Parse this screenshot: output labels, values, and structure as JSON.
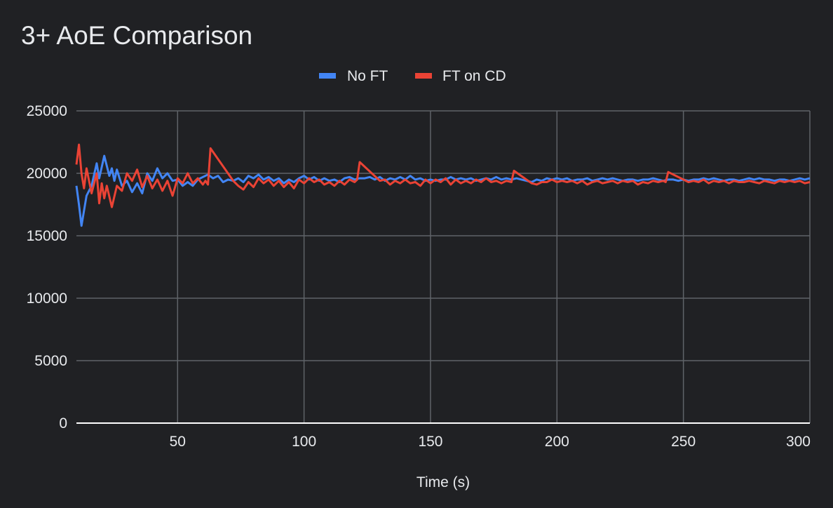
{
  "chart_data": {
    "type": "line",
    "title": "3+ AoE Comparison",
    "xlabel": "Time (s)",
    "ylabel": "",
    "xlim": [
      10,
      300
    ],
    "ylim": [
      0,
      25000
    ],
    "x_ticks": [
      50,
      100,
      150,
      200,
      250,
      300
    ],
    "y_ticks": [
      0,
      5000,
      10000,
      15000,
      20000,
      25000
    ],
    "grid": true,
    "legend_position": "top",
    "series": [
      {
        "name": "No FT",
        "color": "#4285f4",
        "points": [
          [
            10,
            19000
          ],
          [
            11,
            17500
          ],
          [
            12,
            15800
          ],
          [
            14,
            18200
          ],
          [
            16,
            19000
          ],
          [
            18,
            20800
          ],
          [
            19,
            19600
          ],
          [
            21,
            21400
          ],
          [
            23,
            19800
          ],
          [
            24,
            20400
          ],
          [
            25,
            19400
          ],
          [
            26,
            20300
          ],
          [
            28,
            19000
          ],
          [
            30,
            19400
          ],
          [
            32,
            18500
          ],
          [
            34,
            19200
          ],
          [
            36,
            18400
          ],
          [
            38,
            20000
          ],
          [
            40,
            19400
          ],
          [
            42,
            20400
          ],
          [
            44,
            19600
          ],
          [
            46,
            20000
          ],
          [
            48,
            19400
          ],
          [
            50,
            19500
          ],
          [
            52,
            19000
          ],
          [
            54,
            19300
          ],
          [
            56,
            19000
          ],
          [
            58,
            19500
          ],
          [
            60,
            19700
          ],
          [
            62,
            19900
          ],
          [
            64,
            19600
          ],
          [
            66,
            19800
          ],
          [
            68,
            19300
          ],
          [
            70,
            19500
          ],
          [
            72,
            19400
          ],
          [
            74,
            19600
          ],
          [
            76,
            19300
          ],
          [
            78,
            19800
          ],
          [
            80,
            19600
          ],
          [
            82,
            19900
          ],
          [
            84,
            19500
          ],
          [
            86,
            19700
          ],
          [
            88,
            19400
          ],
          [
            90,
            19600
          ],
          [
            92,
            19200
          ],
          [
            94,
            19500
          ],
          [
            96,
            19300
          ],
          [
            98,
            19600
          ],
          [
            100,
            19800
          ],
          [
            102,
            19500
          ],
          [
            104,
            19700
          ],
          [
            106,
            19400
          ],
          [
            108,
            19600
          ],
          [
            110,
            19400
          ],
          [
            112,
            19500
          ],
          [
            114,
            19300
          ],
          [
            116,
            19600
          ],
          [
            118,
            19700
          ],
          [
            120,
            19500
          ],
          [
            122,
            19600
          ],
          [
            124,
            19600
          ],
          [
            126,
            19700
          ],
          [
            128,
            19500
          ],
          [
            130,
            19700
          ],
          [
            132,
            19400
          ],
          [
            134,
            19600
          ],
          [
            136,
            19500
          ],
          [
            138,
            19700
          ],
          [
            140,
            19500
          ],
          [
            142,
            19800
          ],
          [
            144,
            19500
          ],
          [
            146,
            19600
          ],
          [
            148,
            19400
          ],
          [
            150,
            19500
          ],
          [
            152,
            19400
          ],
          [
            154,
            19500
          ],
          [
            156,
            19500
          ],
          [
            158,
            19700
          ],
          [
            160,
            19500
          ],
          [
            162,
            19600
          ],
          [
            164,
            19500
          ],
          [
            166,
            19600
          ],
          [
            168,
            19400
          ],
          [
            170,
            19500
          ],
          [
            172,
            19600
          ],
          [
            174,
            19500
          ],
          [
            176,
            19700
          ],
          [
            178,
            19500
          ],
          [
            180,
            19600
          ],
          [
            182,
            19500
          ],
          [
            184,
            19600
          ],
          [
            186,
            19500
          ],
          [
            188,
            19400
          ],
          [
            190,
            19300
          ],
          [
            192,
            19500
          ],
          [
            194,
            19400
          ],
          [
            196,
            19600
          ],
          [
            198,
            19500
          ],
          [
            200,
            19600
          ],
          [
            202,
            19500
          ],
          [
            204,
            19600
          ],
          [
            206,
            19400
          ],
          [
            208,
            19500
          ],
          [
            210,
            19500
          ],
          [
            212,
            19600
          ],
          [
            214,
            19400
          ],
          [
            216,
            19500
          ],
          [
            218,
            19600
          ],
          [
            220,
            19500
          ],
          [
            222,
            19600
          ],
          [
            224,
            19500
          ],
          [
            226,
            19400
          ],
          [
            228,
            19500
          ],
          [
            230,
            19500
          ],
          [
            232,
            19400
          ],
          [
            234,
            19500
          ],
          [
            236,
            19500
          ],
          [
            238,
            19600
          ],
          [
            240,
            19500
          ],
          [
            242,
            19400
          ],
          [
            244,
            19500
          ],
          [
            246,
            19500
          ],
          [
            248,
            19400
          ],
          [
            250,
            19500
          ],
          [
            252,
            19400
          ],
          [
            254,
            19500
          ],
          [
            256,
            19500
          ],
          [
            258,
            19600
          ],
          [
            260,
            19500
          ],
          [
            262,
            19600
          ],
          [
            264,
            19500
          ],
          [
            266,
            19400
          ],
          [
            268,
            19500
          ],
          [
            270,
            19500
          ],
          [
            272,
            19400
          ],
          [
            274,
            19500
          ],
          [
            276,
            19600
          ],
          [
            278,
            19500
          ],
          [
            280,
            19600
          ],
          [
            282,
            19500
          ],
          [
            284,
            19500
          ],
          [
            286,
            19400
          ],
          [
            288,
            19500
          ],
          [
            290,
            19500
          ],
          [
            292,
            19400
          ],
          [
            294,
            19500
          ],
          [
            296,
            19600
          ],
          [
            298,
            19500
          ],
          [
            300,
            19600
          ]
        ]
      },
      {
        "name": "FT on CD",
        "color": "#ea4335",
        "points": [
          [
            10,
            20700
          ],
          [
            11,
            22300
          ],
          [
            12,
            20000
          ],
          [
            13,
            18800
          ],
          [
            14,
            20400
          ],
          [
            16,
            18400
          ],
          [
            18,
            20000
          ],
          [
            19,
            17600
          ],
          [
            20,
            19200
          ],
          [
            21,
            18000
          ],
          [
            22,
            19000
          ],
          [
            24,
            17300
          ],
          [
            26,
            19000
          ],
          [
            28,
            18600
          ],
          [
            30,
            20000
          ],
          [
            32,
            19400
          ],
          [
            34,
            20300
          ],
          [
            36,
            18900
          ],
          [
            38,
            19800
          ],
          [
            40,
            18800
          ],
          [
            42,
            19500
          ],
          [
            44,
            18600
          ],
          [
            46,
            19400
          ],
          [
            48,
            18200
          ],
          [
            50,
            19600
          ],
          [
            52,
            19200
          ],
          [
            54,
            20000
          ],
          [
            56,
            19200
          ],
          [
            58,
            19600
          ],
          [
            60,
            19100
          ],
          [
            61,
            19400
          ],
          [
            62,
            19100
          ],
          [
            63,
            22000
          ],
          [
            72,
            19400
          ],
          [
            74,
            19000
          ],
          [
            76,
            18700
          ],
          [
            78,
            19300
          ],
          [
            80,
            18900
          ],
          [
            82,
            19600
          ],
          [
            84,
            19200
          ],
          [
            86,
            19500
          ],
          [
            88,
            19000
          ],
          [
            90,
            19400
          ],
          [
            92,
            18900
          ],
          [
            94,
            19300
          ],
          [
            96,
            18800
          ],
          [
            98,
            19500
          ],
          [
            100,
            19200
          ],
          [
            102,
            19600
          ],
          [
            104,
            19300
          ],
          [
            106,
            19500
          ],
          [
            108,
            19100
          ],
          [
            110,
            19300
          ],
          [
            112,
            19000
          ],
          [
            114,
            19400
          ],
          [
            116,
            19100
          ],
          [
            118,
            19500
          ],
          [
            120,
            19300
          ],
          [
            121,
            19500
          ],
          [
            122,
            20900
          ],
          [
            130,
            19400
          ],
          [
            132,
            19500
          ],
          [
            134,
            19100
          ],
          [
            136,
            19400
          ],
          [
            138,
            19200
          ],
          [
            140,
            19500
          ],
          [
            142,
            19200
          ],
          [
            144,
            19300
          ],
          [
            146,
            19000
          ],
          [
            148,
            19500
          ],
          [
            150,
            19200
          ],
          [
            152,
            19500
          ],
          [
            154,
            19300
          ],
          [
            156,
            19600
          ],
          [
            158,
            19100
          ],
          [
            160,
            19500
          ],
          [
            162,
            19200
          ],
          [
            164,
            19400
          ],
          [
            166,
            19200
          ],
          [
            168,
            19500
          ],
          [
            170,
            19300
          ],
          [
            172,
            19600
          ],
          [
            174,
            19300
          ],
          [
            176,
            19400
          ],
          [
            178,
            19200
          ],
          [
            180,
            19400
          ],
          [
            182,
            19300
          ],
          [
            183,
            20200
          ],
          [
            190,
            19200
          ],
          [
            192,
            19100
          ],
          [
            194,
            19300
          ],
          [
            196,
            19300
          ],
          [
            198,
            19500
          ],
          [
            200,
            19300
          ],
          [
            202,
            19400
          ],
          [
            204,
            19300
          ],
          [
            206,
            19400
          ],
          [
            208,
            19200
          ],
          [
            210,
            19400
          ],
          [
            212,
            19100
          ],
          [
            214,
            19300
          ],
          [
            216,
            19400
          ],
          [
            218,
            19200
          ],
          [
            220,
            19300
          ],
          [
            222,
            19400
          ],
          [
            224,
            19200
          ],
          [
            226,
            19400
          ],
          [
            228,
            19300
          ],
          [
            230,
            19400
          ],
          [
            232,
            19100
          ],
          [
            234,
            19300
          ],
          [
            236,
            19200
          ],
          [
            238,
            19400
          ],
          [
            240,
            19300
          ],
          [
            242,
            19400
          ],
          [
            243,
            19300
          ],
          [
            244,
            20100
          ],
          [
            252,
            19300
          ],
          [
            254,
            19400
          ],
          [
            256,
            19300
          ],
          [
            258,
            19500
          ],
          [
            260,
            19200
          ],
          [
            262,
            19400
          ],
          [
            264,
            19300
          ],
          [
            266,
            19400
          ],
          [
            268,
            19200
          ],
          [
            270,
            19400
          ],
          [
            272,
            19300
          ],
          [
            274,
            19300
          ],
          [
            276,
            19400
          ],
          [
            278,
            19300
          ],
          [
            280,
            19200
          ],
          [
            282,
            19400
          ],
          [
            284,
            19300
          ],
          [
            286,
            19200
          ],
          [
            288,
            19400
          ],
          [
            290,
            19300
          ],
          [
            292,
            19400
          ],
          [
            294,
            19300
          ],
          [
            296,
            19400
          ],
          [
            298,
            19200
          ],
          [
            300,
            19300
          ]
        ]
      }
    ]
  }
}
